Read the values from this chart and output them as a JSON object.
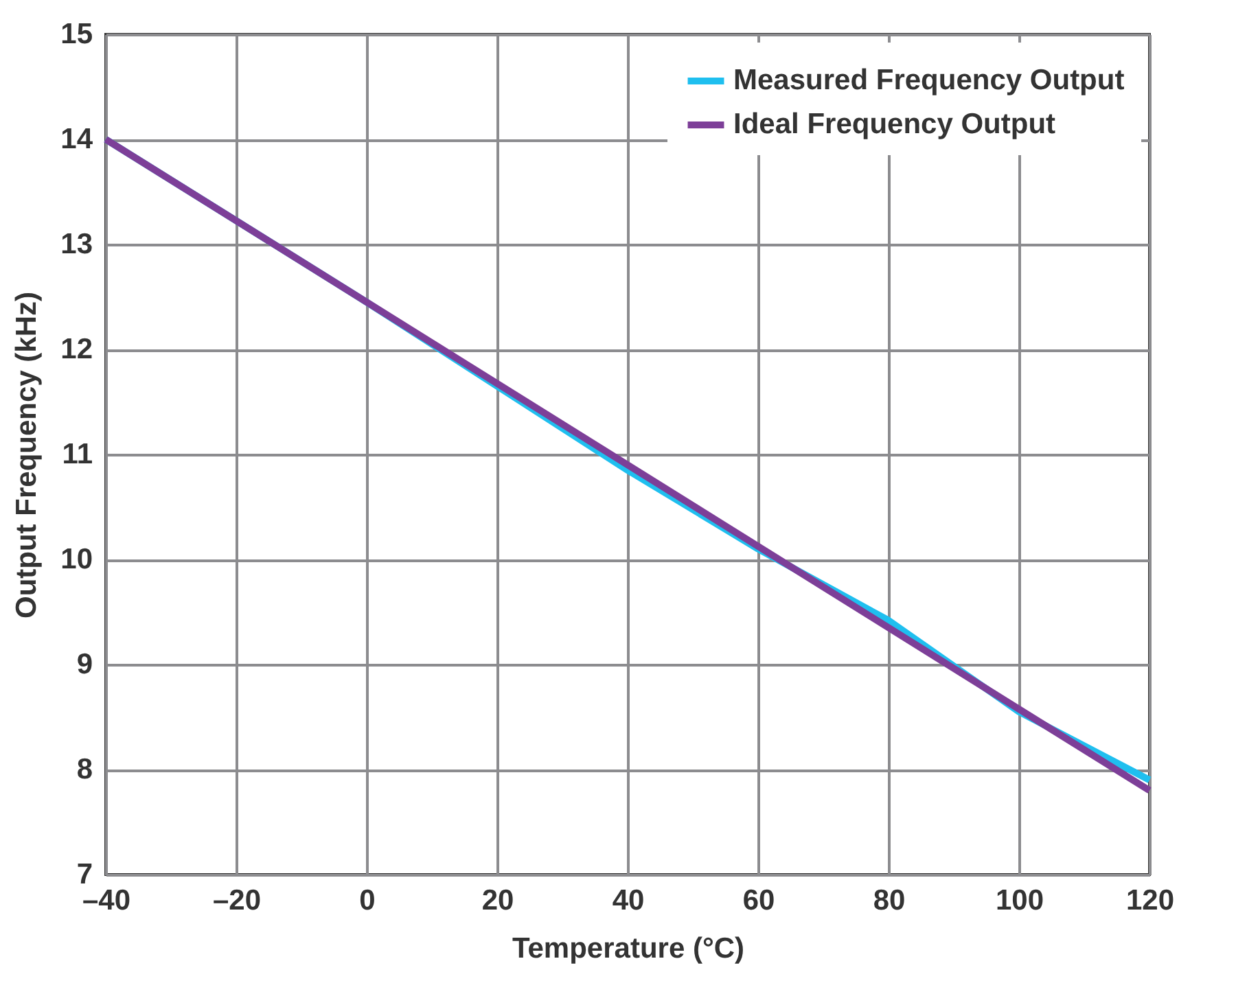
{
  "chart_data": {
    "type": "line",
    "xlabel": "Temperature (°C)",
    "ylabel": "Output Frequency (kHz)",
    "xlim": [
      -40,
      120
    ],
    "xticks": [
      {
        "value": -40,
        "label": "–40"
      },
      {
        "value": -20,
        "label": "–20"
      },
      0,
      20,
      40,
      60,
      80,
      100,
      120
    ],
    "ylim": [
      7,
      15
    ],
    "yticks": [
      7,
      8,
      9,
      10,
      11,
      12,
      13,
      14,
      15
    ],
    "grid": true,
    "legend": "top right",
    "line_style": "solid",
    "series": [
      {
        "name": "Measured Frequency Output",
        "color": "#1fbfef",
        "x": [
          -40,
          0,
          20,
          40,
          60,
          80,
          100,
          120
        ],
        "values": [
          14.0,
          12.45,
          11.65,
          10.85,
          10.1,
          9.42,
          8.55,
          7.9
        ]
      },
      {
        "name": "Ideal Frequency Output",
        "color": "#7d3f98",
        "x": [
          -40,
          120
        ],
        "values": [
          14.0,
          7.8
        ]
      }
    ]
  }
}
